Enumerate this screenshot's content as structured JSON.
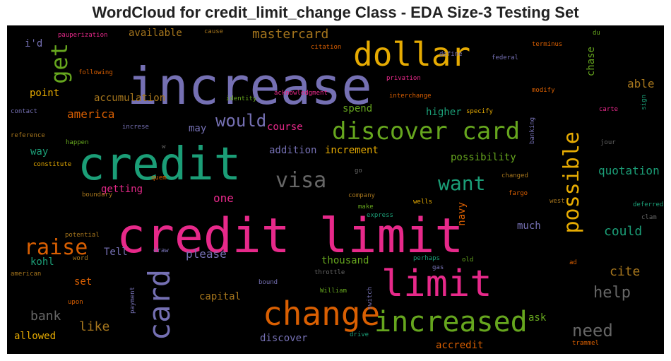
{
  "title": "WordCloud for credit_limit_change Class - EDA Size-3 Testing Set",
  "colors": {
    "background": "#000000",
    "purple": "#7570b3",
    "pink": "#e7298a",
    "green": "#1b9e77",
    "orange": "#d95f02",
    "lime": "#66a61e",
    "gold": "#e6ab02",
    "brown": "#a6761d",
    "gray": "#666666"
  },
  "words": [
    "credit limit",
    "increase",
    "credit",
    "limit",
    "change",
    "dollar",
    "increased",
    "discover card",
    "card",
    "possible",
    "get",
    "visa",
    "raise",
    "want",
    "would",
    "need",
    "help",
    "mastercard",
    "america",
    "quotation",
    "cite",
    "like",
    "could",
    "bank",
    "able",
    "one",
    "capital",
    "please",
    "kohl",
    "thousand",
    "ask",
    "much",
    "set",
    "navy",
    "accumulation",
    "available",
    "point",
    "spend",
    "higher",
    "way",
    "addition",
    "increment",
    "possibility",
    "getting",
    "course",
    "may",
    "discover",
    "accredit",
    "allowed",
    "chase",
    "i'd",
    "Tell",
    "pauperization",
    "cause",
    "citation",
    "terminus",
    "du",
    "define",
    "federal",
    "following",
    "privation",
    "identity",
    "acknowledgment",
    "interchange",
    "modify",
    "contact",
    "specify",
    "carte",
    "sign",
    "increse",
    "reference",
    "happen",
    "constitute",
    "banking",
    "jour",
    "w",
    "go",
    "changed",
    "quem",
    "company",
    "wells",
    "fargo",
    "west",
    "boundary",
    "make",
    "express",
    "deferred",
    "clam",
    "potential",
    "draw",
    "word",
    "perhaps",
    "gas",
    "old",
    "ad",
    "american",
    "bound",
    "throttle",
    "upon",
    "payment",
    "William",
    "switch",
    "drive",
    "trammel"
  ]
}
